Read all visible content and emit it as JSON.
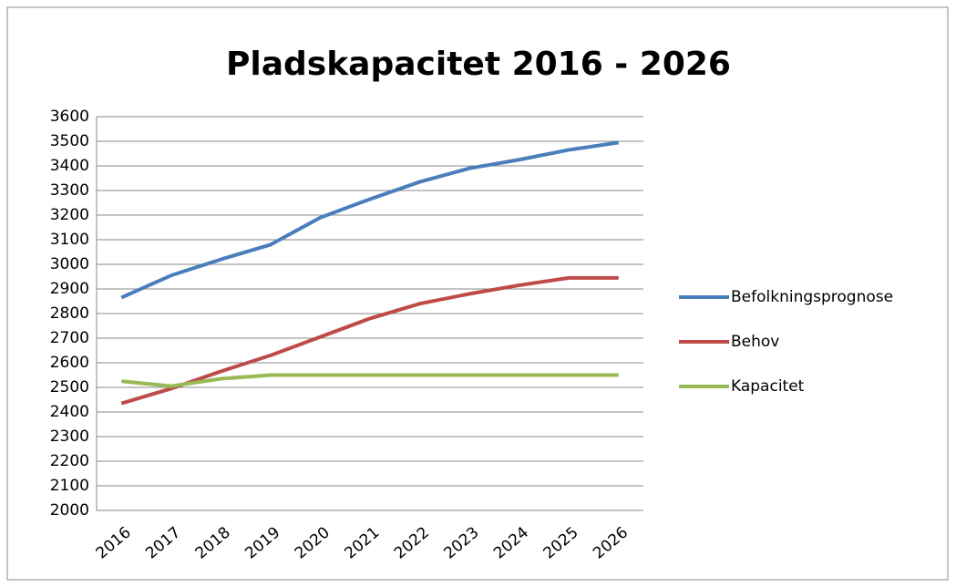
{
  "chart_data": {
    "type": "line",
    "title": "Pladskapacitet 2016 - 2026",
    "categories": [
      "2016",
      "2017",
      "2018",
      "2019",
      "2020",
      "2021",
      "2022",
      "2023",
      "2024",
      "2025",
      "2026"
    ],
    "series": [
      {
        "name": "Befolkningsprognose",
        "color": "#4a7ebb",
        "values": [
          2865,
          2955,
          3020,
          3080,
          3190,
          3265,
          3335,
          3390,
          3425,
          3465,
          3495
        ]
      },
      {
        "name": "Behov",
        "color": "#be4b48",
        "values": [
          2435,
          2495,
          2565,
          2630,
          2705,
          2780,
          2840,
          2880,
          2915,
          2945,
          2945
        ]
      },
      {
        "name": "Kapacitet",
        "color": "#98b954",
        "values": [
          2525,
          2505,
          2535,
          2550,
          2550,
          2550,
          2550,
          2550,
          2550,
          2550,
          2550
        ]
      }
    ],
    "ylim": [
      2000,
      3600
    ],
    "yticks": [
      2000,
      2100,
      2200,
      2300,
      2400,
      2500,
      2600,
      2700,
      2800,
      2900,
      3000,
      3100,
      3200,
      3300,
      3400,
      3500,
      3600
    ],
    "grid": true,
    "legend": "right"
  }
}
